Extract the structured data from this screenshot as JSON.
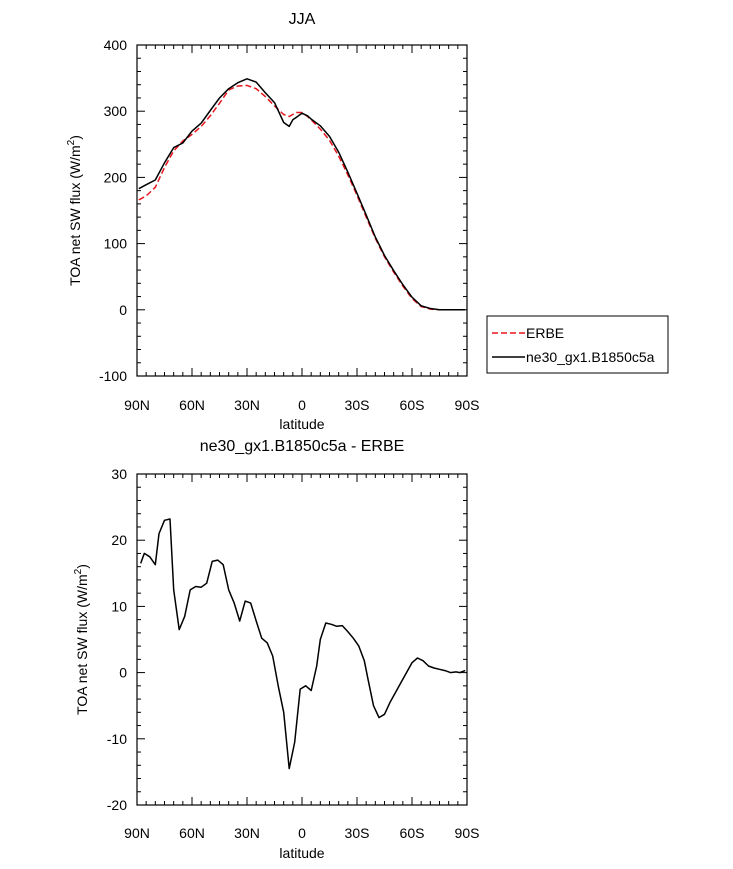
{
  "chart_data": [
    {
      "type": "line",
      "title": "JJA",
      "xlabel": "latitude",
      "ylabel": "TOA net SW flux (W/m",
      "ylabel_sup": "2",
      "ylabel_close": ")",
      "xlim": [
        -90,
        90
      ],
      "ylim": [
        -100,
        400
      ],
      "x_ticks": [
        -90,
        -60,
        -30,
        0,
        30,
        60,
        90
      ],
      "x_tick_labels": [
        "90N",
        "60N",
        "30N",
        "0",
        "30S",
        "60S",
        "90S"
      ],
      "y_ticks": [
        -100,
        0,
        100,
        200,
        300,
        400
      ],
      "y_tick_labels": [
        "-100",
        "0",
        "100",
        "200",
        "300",
        "400"
      ],
      "legend_position": "right",
      "series": [
        {
          "name": "ERBE",
          "color": "#e8141e",
          "style": "dashed",
          "x": [
            -89,
            -85,
            -80,
            -75,
            -70,
            -65,
            -60,
            -55,
            -50,
            -45,
            -40,
            -35,
            -30,
            -25,
            -20,
            -15,
            -10,
            -7,
            -5,
            -3,
            0,
            3,
            5,
            10,
            15,
            20,
            25,
            30,
            35,
            40,
            45,
            50,
            55,
            60,
            65,
            70,
            75,
            80,
            85,
            89
          ],
          "y": [
            166,
            172,
            185,
            215,
            240,
            255,
            265,
            277,
            293,
            312,
            332,
            338,
            339,
            334,
            322,
            308,
            295,
            292,
            295,
            298,
            298,
            292,
            287,
            273,
            256,
            232,
            204,
            173,
            140,
            108,
            80,
            57,
            36,
            17,
            5,
            1,
            0,
            0,
            0,
            0
          ]
        },
        {
          "name": "ne30_gx1.B1850c5a",
          "color": "#000000",
          "style": "solid",
          "x": [
            -89,
            -85,
            -80,
            -75,
            -70,
            -65,
            -60,
            -55,
            -50,
            -45,
            -40,
            -35,
            -30,
            -25,
            -20,
            -15,
            -10,
            -7,
            -5,
            -3,
            0,
            3,
            5,
            10,
            15,
            20,
            25,
            30,
            35,
            40,
            45,
            50,
            55,
            60,
            65,
            70,
            75,
            80,
            85,
            89
          ],
          "y": [
            183,
            189,
            196,
            222,
            245,
            252,
            270,
            282,
            301,
            320,
            334,
            343,
            349,
            344,
            328,
            313,
            283,
            277,
            287,
            291,
            297,
            293,
            288,
            278,
            262,
            238,
            208,
            176,
            143,
            110,
            82,
            59,
            38,
            19,
            6,
            2,
            0,
            0,
            0,
            0
          ]
        }
      ]
    },
    {
      "type": "line",
      "title": "ne30_gx1.B1850c5a - ERBE",
      "xlabel": "latitude",
      "ylabel": "TOA net SW flux (W/m",
      "ylabel_sup": "2",
      "ylabel_close": ")",
      "xlim": [
        -90,
        90
      ],
      "ylim": [
        -20,
        30
      ],
      "x_ticks": [
        -90,
        -60,
        -30,
        0,
        30,
        60,
        90
      ],
      "x_tick_labels": [
        "90N",
        "60N",
        "30N",
        "0",
        "30S",
        "60S",
        "90S"
      ],
      "y_ticks": [
        -20,
        -10,
        0,
        10,
        20,
        30
      ],
      "y_tick_labels": [
        "-20",
        "-10",
        "0",
        "10",
        "20",
        "30"
      ],
      "series": [
        {
          "name": "ne30_gx1.B1850c5a - ERBE",
          "color": "#000000",
          "style": "solid",
          "x": [
            -88,
            -86,
            -83,
            -80,
            -78,
            -75,
            -72,
            -70,
            -67,
            -64,
            -61,
            -58,
            -55,
            -52,
            -49,
            -46,
            -43,
            -40,
            -37,
            -34,
            -31,
            -28,
            -25,
            -22,
            -19,
            -16,
            -13,
            -10,
            -7,
            -4,
            -1,
            2,
            5,
            8,
            10,
            13,
            16,
            19,
            22,
            25,
            28,
            31,
            34,
            36,
            39,
            42,
            45,
            48,
            51,
            54,
            57,
            60,
            63,
            66,
            69,
            72,
            75,
            78,
            81,
            84,
            86,
            89
          ],
          "y": [
            16.5,
            18,
            17.5,
            16.3,
            21,
            23,
            23.2,
            12.5,
            6.5,
            8.5,
            12.5,
            13,
            12.9,
            13.5,
            16.8,
            17,
            16.3,
            12.5,
            10.5,
            7.8,
            10.8,
            10.5,
            7.8,
            5.2,
            4.5,
            2.5,
            -2,
            -6,
            -14.5,
            -10.5,
            -2.5,
            -2,
            -2.7,
            1,
            5,
            7.5,
            7.3,
            7,
            7.1,
            6.2,
            5.2,
            4,
            1.8,
            -1,
            -5,
            -6.8,
            -6.3,
            -4.5,
            -3,
            -1.5,
            0,
            1.5,
            2.2,
            1.8,
            1,
            0.7,
            0.5,
            0.3,
            0,
            0.1,
            0,
            0.3
          ]
        }
      ]
    }
  ]
}
